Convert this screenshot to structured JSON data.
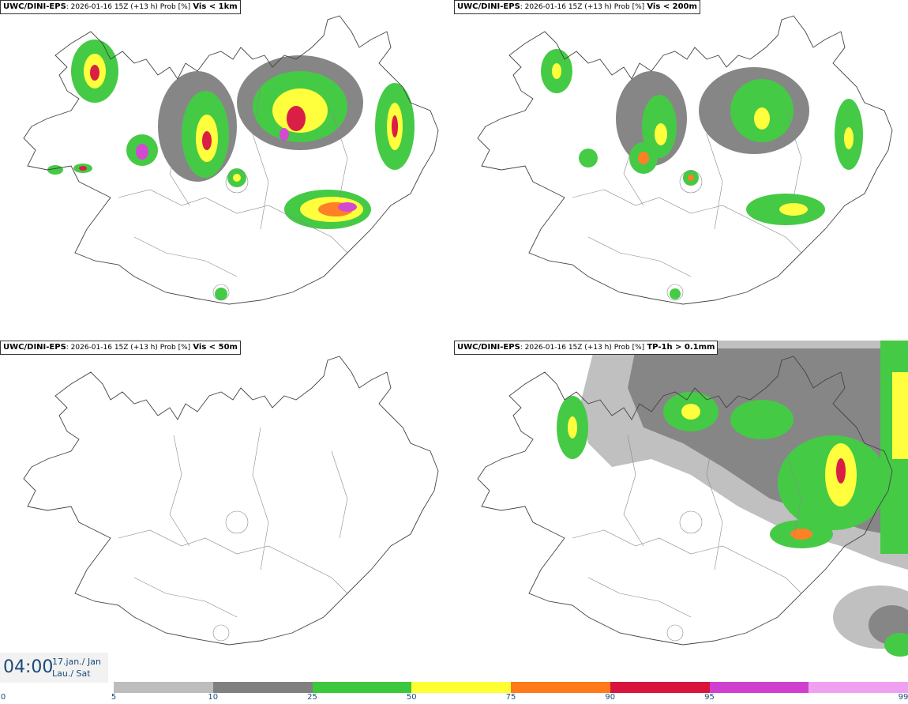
{
  "panels": [
    {
      "model": "UWC/DINI-EPS",
      "meta": ": 2026-01-16 15Z (+13 h) Prob [%]",
      "variable": "Vis < 1km"
    },
    {
      "model": "UWC/DINI-EPS",
      "meta": ": 2026-01-16 15Z (+13 h) Prob [%]",
      "variable": "Vis < 200m"
    },
    {
      "model": "UWC/DINI-EPS",
      "meta": ": 2026-01-16 15Z (+13 h) Prob [%]",
      "variable": "Vis < 50m"
    },
    {
      "model": "UWC/DINI-EPS",
      "meta": ": 2026-01-16 15Z (+13 h) Prob [%]",
      "variable": "TP-1h > 0.1mm"
    }
  ],
  "time": {
    "hour": "04:00",
    "date_line1": "17.jan./ Jan",
    "date_line2": "Lau./ Sat"
  },
  "legend": {
    "ticks": [
      "0",
      "5",
      "10",
      "25",
      "50",
      "75",
      "90",
      "95",
      "99"
    ],
    "colors": [
      "#bdbdbd",
      "#808080",
      "#3cc83c",
      "#ffff33",
      "#ff7a1a",
      "#d8143c",
      "#d040d0",
      "#f0a0f0"
    ]
  }
}
